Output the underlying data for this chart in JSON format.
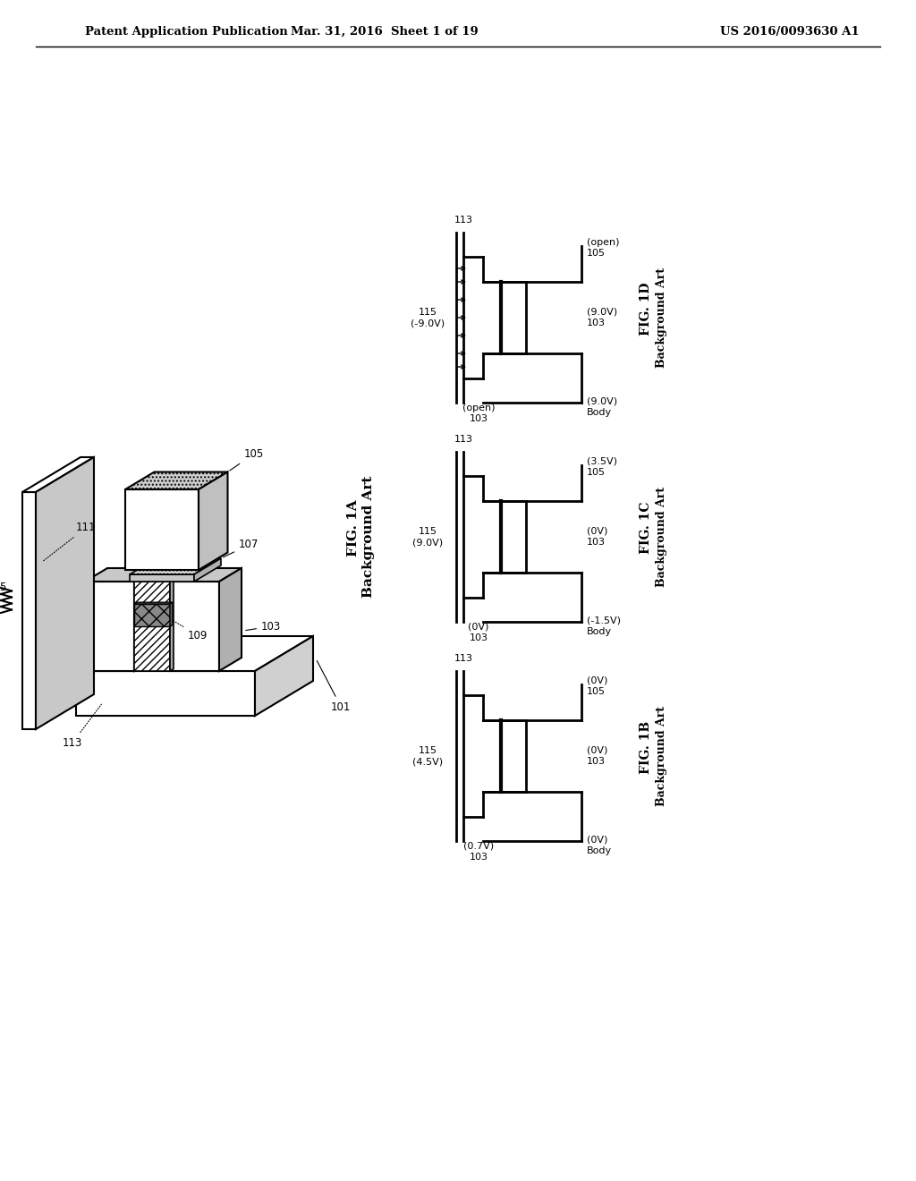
{
  "header_left": "Patent Application Publication",
  "header_center": "Mar. 31, 2016  Sheet 1 of 19",
  "header_right": "US 2016/0093630 A1",
  "bg_color": "#ffffff",
  "line_color": "#000000",
  "figures": {
    "fig1b": {
      "label": "FIG. 1B",
      "sublabel": "Background Art",
      "left_label": "115\n(4.5V)",
      "top_right": "(0V)\n105",
      "mid_right": "(0V)\n103",
      "bot_source": "(0.7V)\n103",
      "body": "(0V)\nBody",
      "has_arrows": false,
      "double_line": true
    },
    "fig1c": {
      "label": "FIG. 1C",
      "sublabel": "Background Art",
      "left_label": "115\n(9.0V)",
      "top_right": "(3.5V)\n105",
      "mid_right": "(0V)\n103",
      "bot_source": "(0V)\n103",
      "body": "(-1.5V)\nBody",
      "has_arrows": false,
      "double_line": false
    },
    "fig1d": {
      "label": "FIG. 1D",
      "sublabel": "Background Art",
      "left_label": "115\n(-9.0V)",
      "top_right": "(open)\n105",
      "mid_right": "(9.0V)\n103",
      "bot_source": "(open)\n103",
      "body": "(9.0V)\nBody",
      "has_arrows": true,
      "double_line": true
    }
  },
  "fig1a": {
    "label": "FIG. 1A",
    "sublabel": "Background Art"
  }
}
